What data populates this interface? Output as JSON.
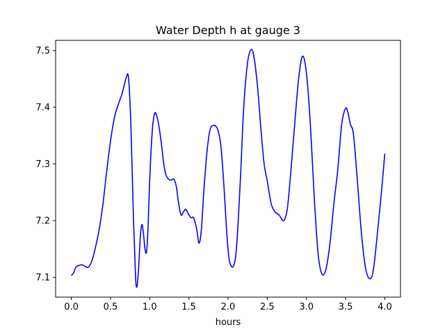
{
  "chart_data": {
    "type": "line",
    "title": "Water Depth h at gauge 3",
    "xlabel": "hours",
    "ylabel": "",
    "xlim": [
      -0.2,
      4.2
    ],
    "ylim": [
      7.065,
      7.518
    ],
    "grid": false,
    "legend": "none",
    "x_ticks": [
      0.0,
      0.5,
      1.0,
      1.5,
      2.0,
      2.5,
      3.0,
      3.5,
      4.0
    ],
    "x_tick_labels": [
      "0.0",
      "0.5",
      "1.0",
      "1.5",
      "2.0",
      "2.5",
      "3.0",
      "3.5",
      "4.0"
    ],
    "y_ticks": [
      7.1,
      7.2,
      7.3,
      7.4,
      7.5
    ],
    "y_tick_labels": [
      "7.1",
      "7.2",
      "7.3",
      "7.4",
      "7.5"
    ],
    "series": [
      {
        "color": "#0000ff",
        "x": [
          0.0,
          0.03,
          0.06,
          0.1,
          0.14,
          0.18,
          0.22,
          0.26,
          0.3,
          0.35,
          0.4,
          0.45,
          0.5,
          0.55,
          0.6,
          0.65,
          0.7,
          0.73,
          0.76,
          0.79,
          0.82,
          0.84,
          0.86,
          0.88,
          0.9,
          0.92,
          0.94,
          0.96,
          0.98,
          1.0,
          1.03,
          1.06,
          1.09,
          1.12,
          1.15,
          1.18,
          1.21,
          1.25,
          1.28,
          1.31,
          1.34,
          1.37,
          1.4,
          1.43,
          1.46,
          1.5,
          1.53,
          1.56,
          1.6,
          1.63,
          1.66,
          1.69,
          1.73,
          1.77,
          1.82,
          1.87,
          1.91,
          1.95,
          1.98,
          2.01,
          2.04,
          2.07,
          2.1,
          2.13,
          2.16,
          2.2,
          2.25,
          2.3,
          2.34,
          2.38,
          2.42,
          2.46,
          2.5,
          2.55,
          2.6,
          2.65,
          2.7,
          2.73,
          2.76,
          2.8,
          2.85,
          2.9,
          2.95,
          3.0,
          3.05,
          3.1,
          3.15,
          3.2,
          3.25,
          3.3,
          3.35,
          3.4,
          3.45,
          3.5,
          3.53,
          3.56,
          3.6,
          3.65,
          3.7,
          3.75,
          3.8,
          3.85,
          3.9,
          3.95,
          4.0
        ],
        "y": [
          7.103,
          7.108,
          7.118,
          7.121,
          7.122,
          7.119,
          7.118,
          7.128,
          7.148,
          7.18,
          7.225,
          7.285,
          7.34,
          7.382,
          7.405,
          7.425,
          7.452,
          7.452,
          7.37,
          7.22,
          7.1,
          7.085,
          7.12,
          7.17,
          7.193,
          7.178,
          7.15,
          7.145,
          7.19,
          7.27,
          7.352,
          7.388,
          7.385,
          7.365,
          7.335,
          7.3,
          7.28,
          7.272,
          7.272,
          7.273,
          7.26,
          7.23,
          7.21,
          7.215,
          7.22,
          7.21,
          7.205,
          7.205,
          7.185,
          7.16,
          7.185,
          7.25,
          7.32,
          7.36,
          7.368,
          7.36,
          7.33,
          7.255,
          7.185,
          7.135,
          7.12,
          7.12,
          7.14,
          7.2,
          7.28,
          7.4,
          7.48,
          7.502,
          7.48,
          7.43,
          7.36,
          7.3,
          7.27,
          7.23,
          7.215,
          7.21,
          7.2,
          7.205,
          7.225,
          7.285,
          7.37,
          7.45,
          7.49,
          7.46,
          7.37,
          7.24,
          7.14,
          7.105,
          7.115,
          7.16,
          7.23,
          7.29,
          7.37,
          7.398,
          7.39,
          7.37,
          7.352,
          7.27,
          7.18,
          7.12,
          7.098,
          7.11,
          7.17,
          7.24,
          7.318
        ]
      }
    ]
  }
}
